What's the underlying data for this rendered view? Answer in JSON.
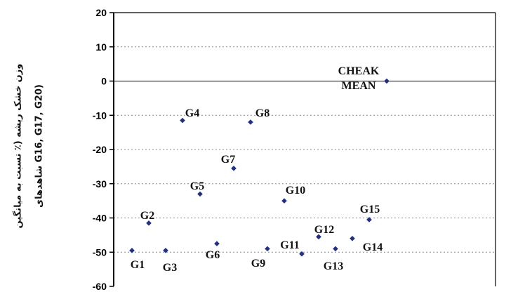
{
  "chart_data": {
    "type": "scatter",
    "title": "",
    "ylabel_line1": "وزن خشک ریشه (٪ نسبت به میانگین",
    "ylabel_line2": "شاهدهای G16, G17, G20)",
    "ylim": [
      -60,
      20
    ],
    "yticks": [
      20,
      10,
      0,
      -10,
      -20,
      -30,
      -40,
      -50,
      -60
    ],
    "grid": "dotted-horizontal",
    "reference_line_y": 0,
    "marker_color": "#1f2f8f",
    "points": [
      {
        "label": "G1",
        "y": -49.5
      },
      {
        "label": "G2",
        "y": -41.5
      },
      {
        "label": "G3",
        "y": -49.5
      },
      {
        "label": "G4",
        "y": -11.5
      },
      {
        "label": "G5",
        "y": -33.0
      },
      {
        "label": "G6",
        "y": -47.5
      },
      {
        "label": "G7",
        "y": -25.5
      },
      {
        "label": "G8",
        "y": -12.0
      },
      {
        "label": "G9",
        "y": -49.0
      },
      {
        "label": "G10",
        "y": -35.0
      },
      {
        "label": "G11",
        "y": -50.5
      },
      {
        "label": "G12",
        "y": -45.5
      },
      {
        "label": "G13",
        "y": -49.0
      },
      {
        "label": "G14",
        "y": -46.0
      },
      {
        "label": "G15",
        "y": -40.5
      },
      {
        "label": "CHEAK MEAN",
        "label_lines": [
          "CHEAK",
          "MEAN"
        ],
        "y": 0
      }
    ]
  }
}
